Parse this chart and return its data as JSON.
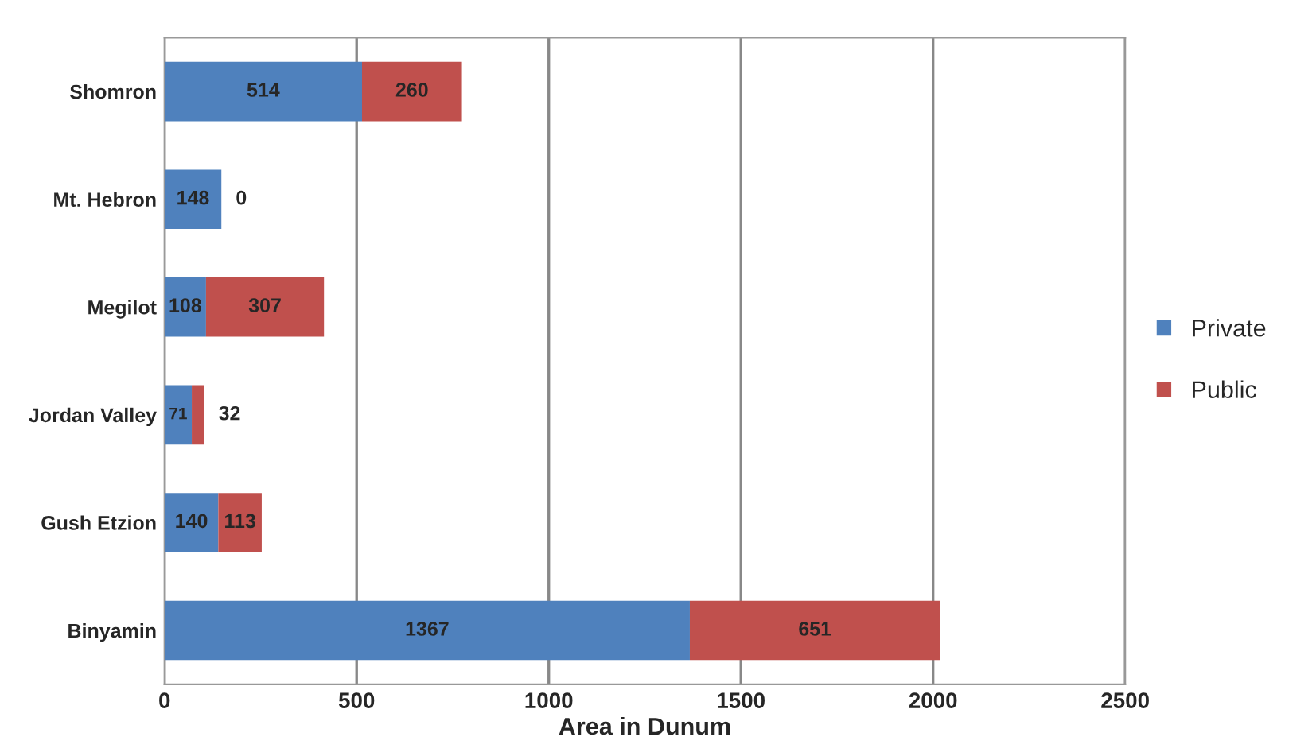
{
  "chart_data": {
    "type": "bar",
    "orientation": "horizontal",
    "stacked": true,
    "xlabel": "Area in Dunum",
    "categories": [
      "Shomron",
      "Mt. Hebron",
      "Megilot",
      "Jordan Valley",
      "Gush Etzion",
      "Binyamin"
    ],
    "series": [
      {
        "name": "Private",
        "color": "#4f81bd",
        "values": [
          514,
          148,
          108,
          71,
          140,
          1367
        ]
      },
      {
        "name": "Public",
        "color": "#c0504d",
        "values": [
          260,
          0,
          307,
          32,
          113,
          651
        ]
      }
    ],
    "xlim": [
      0,
      2500
    ],
    "xticks": [
      0,
      500,
      1000,
      1500,
      2000,
      2500
    ],
    "grid": "x",
    "legend": "right",
    "data_labels": true
  }
}
